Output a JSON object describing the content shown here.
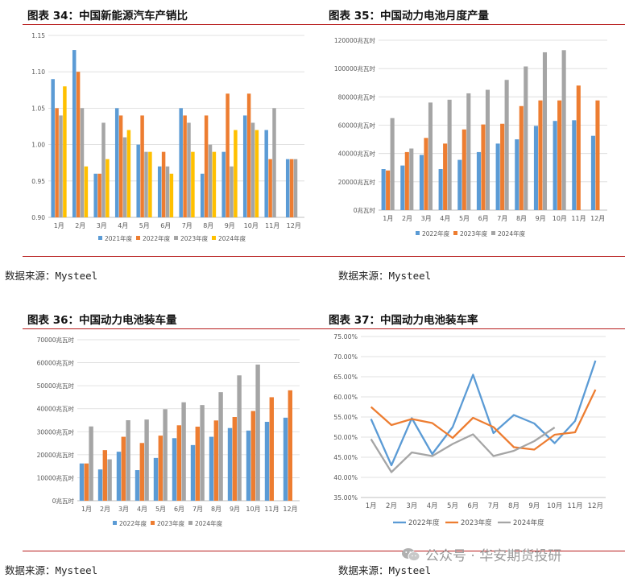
{
  "colors": {
    "s2021": "#5b9bd5",
    "s2022": "#ed7d31",
    "s2023": "#a5a5a5",
    "s2024": "#ffc000",
    "rule": "#b71c1c",
    "grid": "#d9d9d9"
  },
  "panels": [
    {
      "title": "图表 34：中国新能源汽车产销比",
      "source": "数据来源：Mysteel"
    },
    {
      "title": "图表 35：中国动力电池月度产量",
      "source": "数据来源：Mysteel"
    },
    {
      "title": "图表 36：中国动力电池装车量",
      "source": "数据来源：Mysteel"
    },
    {
      "title": "图表 37：中国动力电池装车率",
      "source": "数据来源：Mysteel"
    }
  ],
  "watermark": {
    "text": "公众号 · 华安期货投研",
    "icon": "wechat-icon"
  },
  "chart_data": [
    {
      "type": "bar",
      "title": "图表 34：中国新能源汽车产销比",
      "categories": [
        "1月",
        "2月",
        "3月",
        "4月",
        "5月",
        "6月",
        "7月",
        "8月",
        "9月",
        "10月",
        "11月",
        "12月"
      ],
      "ylim": [
        0.9,
        1.15
      ],
      "yticks": [
        0.9,
        0.95,
        1.0,
        1.05,
        1.1,
        1.15
      ],
      "ytick_labels": [
        "0.90",
        "0.95",
        "1.00",
        "1.05",
        "1.10",
        "1.15"
      ],
      "series": [
        {
          "name": "2021年度",
          "color": "#5b9bd5",
          "values": [
            1.09,
            1.13,
            0.96,
            1.05,
            1.0,
            0.97,
            1.05,
            0.96,
            0.99,
            1.04,
            1.02,
            0.98
          ]
        },
        {
          "name": "2022年度",
          "color": "#ed7d31",
          "values": [
            1.05,
            1.1,
            0.96,
            1.04,
            1.04,
            0.99,
            1.04,
            1.04,
            1.07,
            1.07,
            0.98,
            0.98
          ]
        },
        {
          "name": "2023年度",
          "color": "#a5a5a5",
          "values": [
            1.04,
            1.05,
            1.03,
            1.01,
            0.99,
            0.97,
            1.03,
            1.0,
            0.97,
            1.03,
            1.05,
            0.98
          ]
        },
        {
          "name": "2024年度",
          "color": "#ffc000",
          "values": [
            1.08,
            0.97,
            0.98,
            1.02,
            0.99,
            0.96,
            0.99,
            0.99,
            1.02,
            1.02,
            null,
            null
          ]
        }
      ]
    },
    {
      "type": "bar",
      "title": "图表 35：中国动力电池月度产量",
      "categories": [
        "1月",
        "2月",
        "3月",
        "4月",
        "5月",
        "6月",
        "7月",
        "8月",
        "9月",
        "10月",
        "11月",
        "12月"
      ],
      "ylim": [
        0,
        120000
      ],
      "yticks": [
        0,
        20000,
        40000,
        60000,
        80000,
        100000,
        120000
      ],
      "ytick_labels": [
        "0兆瓦时",
        "20000兆瓦时",
        "40000兆瓦时",
        "60000兆瓦时",
        "80000兆瓦时",
        "100000兆瓦时",
        "120000兆瓦时"
      ],
      "series": [
        {
          "name": "2022年度",
          "color": "#5b9bd5",
          "values": [
            29000,
            31500,
            39000,
            29000,
            35500,
            41000,
            47000,
            50000,
            59500,
            63000,
            63500,
            52500
          ]
        },
        {
          "name": "2023年度",
          "color": "#ed7d31",
          "values": [
            28000,
            41000,
            51000,
            47000,
            57000,
            60500,
            61000,
            73500,
            77500,
            77500,
            88000,
            77500
          ]
        },
        {
          "name": "2024年度",
          "color": "#a5a5a5",
          "values": [
            65000,
            43500,
            76000,
            78000,
            82500,
            85000,
            92000,
            101500,
            111500,
            113000,
            null,
            null
          ]
        }
      ]
    },
    {
      "type": "bar",
      "title": "图表 36：中国动力电池装车量",
      "categories": [
        "1月",
        "2月",
        "3月",
        "4月",
        "5月",
        "6月",
        "7月",
        "8月",
        "9月",
        "10月",
        "11月",
        "12月"
      ],
      "ylim": [
        0,
        70000
      ],
      "yticks": [
        0,
        10000,
        20000,
        30000,
        40000,
        50000,
        60000,
        70000
      ],
      "ytick_labels": [
        "0兆瓦时",
        "10000兆瓦时",
        "20000兆瓦时",
        "30000兆瓦时",
        "40000兆瓦时",
        "50000兆瓦时",
        "60000兆瓦时",
        "70000兆瓦时"
      ],
      "series": [
        {
          "name": "2022年度",
          "color": "#5b9bd5",
          "values": [
            16200,
            13600,
            21300,
            13300,
            18600,
            27200,
            24200,
            27800,
            31600,
            30500,
            34300,
            36100
          ]
        },
        {
          "name": "2023年度",
          "color": "#ed7d31",
          "values": [
            16200,
            22000,
            27800,
            25100,
            28300,
            32800,
            32200,
            34900,
            36400,
            39000,
            45000,
            48000
          ]
        },
        {
          "name": "2024年度",
          "color": "#a5a5a5",
          "values": [
            32300,
            18000,
            35000,
            35300,
            39800,
            42800,
            41600,
            47200,
            54500,
            59200,
            null,
            null
          ]
        }
      ]
    },
    {
      "type": "line",
      "title": "图表 37：中国动力电池装车率",
      "categories": [
        "1月",
        "2月",
        "3月",
        "4月",
        "5月",
        "6月",
        "7月",
        "8月",
        "9月",
        "10月",
        "11月",
        "12月"
      ],
      "ylim": [
        35,
        75
      ],
      "yticks": [
        35,
        40,
        45,
        50,
        55,
        60,
        65,
        70,
        75
      ],
      "ytick_labels": [
        "35.00%",
        "40.00%",
        "45.00%",
        "50.00%",
        "55.00%",
        "60.00%",
        "65.00%",
        "70.00%",
        "75.00%"
      ],
      "series": [
        {
          "name": "2022年度",
          "color": "#5b9bd5",
          "values": [
            54.5,
            43.0,
            54.7,
            45.8,
            52.5,
            65.5,
            51.0,
            55.5,
            53.4,
            48.5,
            54.0,
            69.0
          ]
        },
        {
          "name": "2023年度",
          "color": "#ed7d31",
          "values": [
            57.5,
            53.0,
            54.5,
            53.5,
            49.8,
            54.8,
            52.5,
            47.5,
            46.9,
            50.6,
            51.2,
            61.8
          ]
        },
        {
          "name": "2024年度",
          "color": "#a5a5a5",
          "values": [
            49.5,
            41.3,
            46.2,
            45.3,
            48.3,
            50.7,
            45.3,
            46.6,
            49.0,
            52.4,
            null,
            null
          ]
        }
      ]
    }
  ]
}
